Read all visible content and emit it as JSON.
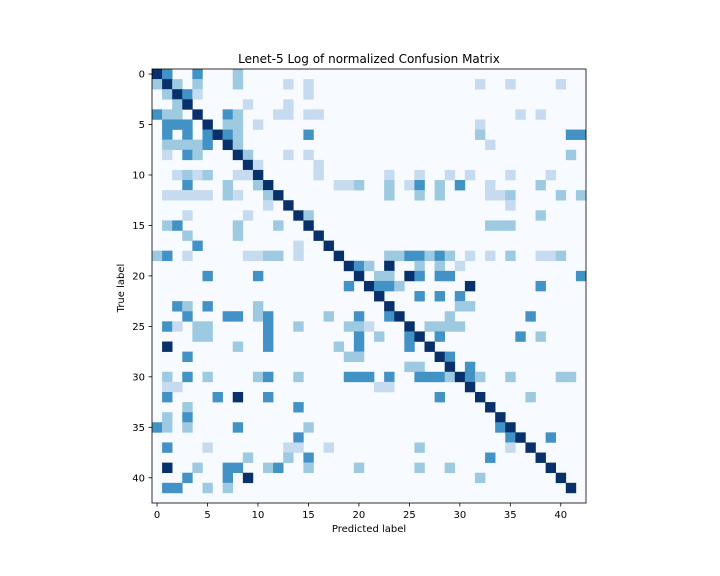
{
  "chart_data": {
    "type": "heatmap",
    "title": "Lenet-5 Log of normalized Confusion Matrix",
    "xlabel": "Predicted label",
    "ylabel": "True label",
    "size": 43,
    "x_ticks": [
      0,
      5,
      10,
      15,
      20,
      25,
      30,
      35,
      40
    ],
    "y_ticks": [
      0,
      5,
      10,
      15,
      20,
      25,
      30,
      35,
      40
    ],
    "colormap": "Blues",
    "levels": [
      "#f7fbff",
      "#c6dbef",
      "#9ecae1",
      "#4292c6",
      "#08306b"
    ],
    "cells": [
      [
        0,
        0,
        4
      ],
      [
        0,
        1,
        3
      ],
      [
        0,
        4,
        3
      ],
      [
        0,
        8,
        2
      ],
      [
        1,
        0,
        2
      ],
      [
        1,
        1,
        4
      ],
      [
        1,
        2,
        2
      ],
      [
        1,
        4,
        2
      ],
      [
        1,
        8,
        2
      ],
      [
        1,
        13,
        1
      ],
      [
        1,
        15,
        1
      ],
      [
        1,
        32,
        1
      ],
      [
        1,
        35,
        1
      ],
      [
        1,
        40,
        1
      ],
      [
        2,
        1,
        2
      ],
      [
        2,
        2,
        4
      ],
      [
        2,
        3,
        3
      ],
      [
        2,
        4,
        1
      ],
      [
        2,
        15,
        1
      ],
      [
        3,
        2,
        2
      ],
      [
        3,
        3,
        4
      ],
      [
        3,
        9,
        1
      ],
      [
        3,
        13,
        1
      ],
      [
        4,
        0,
        3
      ],
      [
        4,
        1,
        2
      ],
      [
        4,
        2,
        2
      ],
      [
        4,
        4,
        4
      ],
      [
        4,
        7,
        3
      ],
      [
        4,
        8,
        2
      ],
      [
        4,
        12,
        1
      ],
      [
        4,
        13,
        1
      ],
      [
        4,
        15,
        1
      ],
      [
        4,
        16,
        1
      ],
      [
        4,
        36,
        1
      ],
      [
        4,
        38,
        1
      ],
      [
        5,
        1,
        3
      ],
      [
        5,
        2,
        3
      ],
      [
        5,
        3,
        3
      ],
      [
        5,
        5,
        4
      ],
      [
        5,
        7,
        2
      ],
      [
        5,
        8,
        2
      ],
      [
        5,
        10,
        1
      ],
      [
        5,
        32,
        1
      ],
      [
        6,
        1,
        3
      ],
      [
        6,
        3,
        3
      ],
      [
        6,
        5,
        3
      ],
      [
        6,
        6,
        4
      ],
      [
        6,
        7,
        3
      ],
      [
        6,
        8,
        2
      ],
      [
        6,
        15,
        3
      ],
      [
        6,
        32,
        2
      ],
      [
        6,
        41,
        3
      ],
      [
        6,
        42,
        3
      ],
      [
        7,
        1,
        2
      ],
      [
        7,
        2,
        2
      ],
      [
        7,
        3,
        2
      ],
      [
        7,
        4,
        2
      ],
      [
        7,
        5,
        3
      ],
      [
        7,
        7,
        4
      ],
      [
        7,
        8,
        2
      ],
      [
        7,
        33,
        1
      ],
      [
        8,
        1,
        1
      ],
      [
        8,
        3,
        3
      ],
      [
        8,
        4,
        2
      ],
      [
        8,
        8,
        4
      ],
      [
        8,
        9,
        2
      ],
      [
        8,
        13,
        1
      ],
      [
        8,
        15,
        1
      ],
      [
        8,
        41,
        2
      ],
      [
        9,
        9,
        4
      ],
      [
        9,
        10,
        1
      ],
      [
        9,
        16,
        1
      ],
      [
        10,
        2,
        1
      ],
      [
        10,
        3,
        2
      ],
      [
        10,
        4,
        1
      ],
      [
        10,
        5,
        2
      ],
      [
        10,
        8,
        1
      ],
      [
        10,
        9,
        1
      ],
      [
        10,
        10,
        4
      ],
      [
        10,
        16,
        1
      ],
      [
        10,
        23,
        1
      ],
      [
        10,
        26,
        1
      ],
      [
        10,
        29,
        1
      ],
      [
        10,
        31,
        1
      ],
      [
        10,
        35,
        1
      ],
      [
        10,
        39,
        1
      ],
      [
        11,
        3,
        3
      ],
      [
        11,
        7,
        2
      ],
      [
        11,
        10,
        2
      ],
      [
        11,
        11,
        4
      ],
      [
        11,
        18,
        1
      ],
      [
        11,
        19,
        1
      ],
      [
        11,
        20,
        2
      ],
      [
        11,
        23,
        2
      ],
      [
        11,
        25,
        1
      ],
      [
        11,
        26,
        3
      ],
      [
        11,
        28,
        2
      ],
      [
        11,
        30,
        3
      ],
      [
        11,
        33,
        1
      ],
      [
        11,
        38,
        2
      ],
      [
        12,
        1,
        1
      ],
      [
        12,
        2,
        1
      ],
      [
        12,
        3,
        1
      ],
      [
        12,
        4,
        1
      ],
      [
        12,
        5,
        1
      ],
      [
        12,
        7,
        2
      ],
      [
        12,
        8,
        1
      ],
      [
        12,
        11,
        2
      ],
      [
        12,
        12,
        4
      ],
      [
        12,
        23,
        2
      ],
      [
        12,
        26,
        2
      ],
      [
        12,
        28,
        2
      ],
      [
        12,
        33,
        1
      ],
      [
        12,
        34,
        1
      ],
      [
        12,
        35,
        2
      ],
      [
        12,
        40,
        2
      ],
      [
        12,
        42,
        2
      ],
      [
        13,
        11,
        1
      ],
      [
        13,
        13,
        4
      ],
      [
        13,
        35,
        1
      ],
      [
        14,
        3,
        1
      ],
      [
        14,
        9,
        1
      ],
      [
        14,
        14,
        4
      ],
      [
        14,
        15,
        2
      ],
      [
        14,
        38,
        2
      ],
      [
        15,
        1,
        2
      ],
      [
        15,
        2,
        3
      ],
      [
        15,
        8,
        2
      ],
      [
        15,
        12,
        2
      ],
      [
        15,
        15,
        4
      ],
      [
        15,
        33,
        2
      ],
      [
        15,
        34,
        2
      ],
      [
        15,
        35,
        2
      ],
      [
        16,
        3,
        2
      ],
      [
        16,
        8,
        2
      ],
      [
        16,
        16,
        4
      ],
      [
        17,
        4,
        3
      ],
      [
        17,
        14,
        1
      ],
      [
        17,
        17,
        4
      ],
      [
        18,
        0,
        2
      ],
      [
        18,
        1,
        3
      ],
      [
        18,
        3,
        1
      ],
      [
        18,
        9,
        1
      ],
      [
        18,
        10,
        1
      ],
      [
        18,
        11,
        2
      ],
      [
        18,
        12,
        2
      ],
      [
        18,
        14,
        1
      ],
      [
        18,
        18,
        4
      ],
      [
        18,
        23,
        2
      ],
      [
        18,
        24,
        2
      ],
      [
        18,
        25,
        3
      ],
      [
        18,
        26,
        3
      ],
      [
        18,
        27,
        2
      ],
      [
        18,
        28,
        3
      ],
      [
        18,
        29,
        2
      ],
      [
        18,
        31,
        1
      ],
      [
        18,
        33,
        1
      ],
      [
        18,
        35,
        2
      ],
      [
        18,
        38,
        1
      ],
      [
        18,
        39,
        1
      ],
      [
        18,
        40,
        2
      ],
      [
        19,
        19,
        4
      ],
      [
        19,
        20,
        3
      ],
      [
        19,
        21,
        2
      ],
      [
        19,
        23,
        4
      ],
      [
        19,
        26,
        2
      ],
      [
        19,
        28,
        2
      ],
      [
        19,
        30,
        1
      ],
      [
        20,
        5,
        3
      ],
      [
        20,
        10,
        3
      ],
      [
        20,
        20,
        4
      ],
      [
        20,
        22,
        2
      ],
      [
        20,
        23,
        2
      ],
      [
        20,
        25,
        4
      ],
      [
        20,
        26,
        3
      ],
      [
        20,
        28,
        3
      ],
      [
        20,
        29,
        3
      ],
      [
        20,
        42,
        3
      ],
      [
        21,
        19,
        3
      ],
      [
        21,
        21,
        4
      ],
      [
        21,
        22,
        3
      ],
      [
        21,
        23,
        3
      ],
      [
        21,
        24,
        2
      ],
      [
        21,
        31,
        4
      ],
      [
        21,
        38,
        3
      ],
      [
        22,
        22,
        4
      ],
      [
        22,
        26,
        3
      ],
      [
        22,
        28,
        3
      ],
      [
        22,
        30,
        3
      ],
      [
        23,
        2,
        3
      ],
      [
        23,
        3,
        2
      ],
      [
        23,
        5,
        3
      ],
      [
        23,
        10,
        2
      ],
      [
        23,
        23,
        4
      ],
      [
        23,
        30,
        2
      ],
      [
        23,
        31,
        2
      ],
      [
        24,
        3,
        3
      ],
      [
        24,
        7,
        3
      ],
      [
        24,
        8,
        3
      ],
      [
        24,
        10,
        2
      ],
      [
        24,
        11,
        3
      ],
      [
        24,
        17,
        2
      ],
      [
        24,
        20,
        3
      ],
      [
        24,
        23,
        3
      ],
      [
        24,
        24,
        4
      ],
      [
        24,
        29,
        2
      ],
      [
        24,
        37,
        3
      ],
      [
        25,
        1,
        3
      ],
      [
        25,
        2,
        1
      ],
      [
        25,
        4,
        2
      ],
      [
        25,
        5,
        2
      ],
      [
        25,
        11,
        3
      ],
      [
        25,
        14,
        2
      ],
      [
        25,
        19,
        2
      ],
      [
        25,
        20,
        2
      ],
      [
        25,
        21,
        1
      ],
      [
        25,
        25,
        4
      ],
      [
        25,
        27,
        2
      ],
      [
        25,
        28,
        2
      ],
      [
        25,
        29,
        2
      ],
      [
        25,
        30,
        2
      ],
      [
        26,
        4,
        2
      ],
      [
        26,
        5,
        2
      ],
      [
        26,
        11,
        3
      ],
      [
        26,
        20,
        3
      ],
      [
        26,
        22,
        2
      ],
      [
        26,
        25,
        3
      ],
      [
        26,
        26,
        4
      ],
      [
        26,
        28,
        3
      ],
      [
        26,
        36,
        3
      ],
      [
        26,
        38,
        2
      ],
      [
        27,
        1,
        4
      ],
      [
        27,
        8,
        2
      ],
      [
        27,
        11,
        3
      ],
      [
        27,
        18,
        2
      ],
      [
        27,
        20,
        3
      ],
      [
        27,
        25,
        3
      ],
      [
        27,
        27,
        4
      ],
      [
        28,
        3,
        3
      ],
      [
        28,
        19,
        2
      ],
      [
        28,
        20,
        2
      ],
      [
        28,
        28,
        4
      ],
      [
        28,
        29,
        3
      ],
      [
        29,
        25,
        2
      ],
      [
        29,
        26,
        2
      ],
      [
        29,
        29,
        4
      ],
      [
        29,
        31,
        3
      ],
      [
        30,
        1,
        2
      ],
      [
        30,
        3,
        3
      ],
      [
        30,
        5,
        2
      ],
      [
        30,
        10,
        2
      ],
      [
        30,
        11,
        3
      ],
      [
        30,
        14,
        2
      ],
      [
        30,
        19,
        3
      ],
      [
        30,
        20,
        3
      ],
      [
        30,
        21,
        3
      ],
      [
        30,
        23,
        3
      ],
      [
        30,
        26,
        3
      ],
      [
        30,
        27,
        3
      ],
      [
        30,
        28,
        3
      ],
      [
        30,
        29,
        2
      ],
      [
        30,
        30,
        4
      ],
      [
        30,
        31,
        3
      ],
      [
        30,
        32,
        2
      ],
      [
        30,
        35,
        2
      ],
      [
        30,
        40,
        2
      ],
      [
        30,
        41,
        2
      ],
      [
        31,
        1,
        1
      ],
      [
        31,
        2,
        1
      ],
      [
        31,
        22,
        1
      ],
      [
        31,
        23,
        1
      ],
      [
        31,
        31,
        4
      ],
      [
        32,
        1,
        3
      ],
      [
        32,
        6,
        3
      ],
      [
        32,
        8,
        4
      ],
      [
        32,
        11,
        3
      ],
      [
        32,
        28,
        3
      ],
      [
        32,
        32,
        4
      ],
      [
        32,
        37,
        2
      ],
      [
        33,
        3,
        2
      ],
      [
        33,
        14,
        3
      ],
      [
        33,
        33,
        4
      ],
      [
        34,
        1,
        2
      ],
      [
        34,
        3,
        3
      ],
      [
        34,
        34,
        4
      ],
      [
        35,
        0,
        3
      ],
      [
        35,
        1,
        2
      ],
      [
        35,
        3,
        2
      ],
      [
        35,
        8,
        3
      ],
      [
        35,
        15,
        2
      ],
      [
        35,
        34,
        3
      ],
      [
        35,
        35,
        4
      ],
      [
        36,
        14,
        3
      ],
      [
        36,
        35,
        3
      ],
      [
        36,
        36,
        4
      ],
      [
        36,
        39,
        3
      ],
      [
        37,
        1,
        3
      ],
      [
        37,
        5,
        1
      ],
      [
        37,
        13,
        1
      ],
      [
        37,
        14,
        1
      ],
      [
        37,
        17,
        1
      ],
      [
        37,
        26,
        2
      ],
      [
        37,
        35,
        1
      ],
      [
        37,
        37,
        4
      ],
      [
        38,
        9,
        2
      ],
      [
        38,
        13,
        2
      ],
      [
        38,
        15,
        3
      ],
      [
        38,
        33,
        3
      ],
      [
        38,
        38,
        4
      ],
      [
        39,
        1,
        4
      ],
      [
        39,
        4,
        2
      ],
      [
        39,
        7,
        3
      ],
      [
        39,
        8,
        3
      ],
      [
        39,
        11,
        2
      ],
      [
        39,
        12,
        3
      ],
      [
        39,
        15,
        2
      ],
      [
        39,
        20,
        2
      ],
      [
        39,
        26,
        2
      ],
      [
        39,
        29,
        2
      ],
      [
        39,
        39,
        4
      ],
      [
        40,
        3,
        3
      ],
      [
        40,
        7,
        3
      ],
      [
        40,
        9,
        4
      ],
      [
        40,
        32,
        2
      ],
      [
        40,
        40,
        4
      ],
      [
        41,
        1,
        3
      ],
      [
        41,
        2,
        3
      ],
      [
        41,
        5,
        2
      ],
      [
        41,
        7,
        2
      ],
      [
        41,
        41,
        4
      ]
    ]
  }
}
